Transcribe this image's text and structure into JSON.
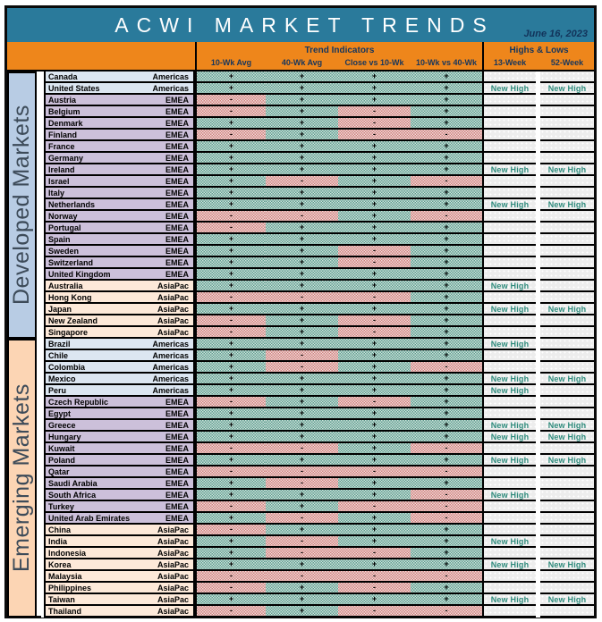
{
  "colors": {
    "title_band": "#2a7a9b",
    "header_band": "#ee861b",
    "header_text": "#16365d",
    "new_high_text": "#2e8b7c",
    "positive_cell": "#5f9e90",
    "negative_cell": "#cf827f",
    "americas_row": "#dce6f1",
    "emea_row": "#ccc0da",
    "asiapac_row": "#fde9d9",
    "developed_sidebar": "#b8cce4",
    "emerging_sidebar": "#fcd5b4"
  },
  "chart_data": {
    "type": "table",
    "title": "ACWI MARKET TRENDS",
    "date": "June 16, 2023",
    "column_groups": [
      "Trend Indicators",
      "Highs & Lows"
    ],
    "columns": [
      "10-Wk Avg",
      "40-Wk Avg",
      "Close vs 10-Wk",
      "10-Wk vs 40-Wk",
      "13-Week",
      "52-Week"
    ],
    "groups": [
      {
        "label": "Developed Markets"
      },
      {
        "label": "Emerging Markets"
      }
    ],
    "rows": [
      {
        "group": "Developed Markets",
        "country": "Canada",
        "region": "Americas",
        "values": [
          "+",
          "+",
          "+",
          "+"
        ],
        "week13": "",
        "week52": ""
      },
      {
        "group": "Developed Markets",
        "country": "United States",
        "region": "Americas",
        "values": [
          "+",
          "+",
          "+",
          "+"
        ],
        "week13": "New High",
        "week52": "New High"
      },
      {
        "group": "Developed Markets",
        "country": "Austria",
        "region": "EMEA",
        "values": [
          "-",
          "+",
          "+",
          "+"
        ],
        "week13": "",
        "week52": ""
      },
      {
        "group": "Developed Markets",
        "country": "Belgium",
        "region": "EMEA",
        "values": [
          "-",
          "+",
          "-",
          "+"
        ],
        "week13": "",
        "week52": ""
      },
      {
        "group": "Developed Markets",
        "country": "Denmark",
        "region": "EMEA",
        "values": [
          "+",
          "+",
          "-",
          "+"
        ],
        "week13": "",
        "week52": ""
      },
      {
        "group": "Developed Markets",
        "country": "Finland",
        "region": "EMEA",
        "values": [
          "-",
          "+",
          "-",
          "-"
        ],
        "week13": "",
        "week52": ""
      },
      {
        "group": "Developed Markets",
        "country": "France",
        "region": "EMEA",
        "values": [
          "+",
          "+",
          "+",
          "+"
        ],
        "week13": "",
        "week52": ""
      },
      {
        "group": "Developed Markets",
        "country": "Germany",
        "region": "EMEA",
        "values": [
          "+",
          "+",
          "+",
          "+"
        ],
        "week13": "",
        "week52": ""
      },
      {
        "group": "Developed Markets",
        "country": "Ireland",
        "region": "EMEA",
        "values": [
          "+",
          "+",
          "+",
          "+"
        ],
        "week13": "New High",
        "week52": "New High"
      },
      {
        "group": "Developed Markets",
        "country": "Israel",
        "region": "EMEA",
        "values": [
          "+",
          "-",
          "+",
          "-"
        ],
        "week13": "",
        "week52": ""
      },
      {
        "group": "Developed Markets",
        "country": "Italy",
        "region": "EMEA",
        "values": [
          "+",
          "+",
          "+",
          "+"
        ],
        "week13": "",
        "week52": ""
      },
      {
        "group": "Developed Markets",
        "country": "Netherlands",
        "region": "EMEA",
        "values": [
          "+",
          "+",
          "+",
          "+"
        ],
        "week13": "New High",
        "week52": "New High"
      },
      {
        "group": "Developed Markets",
        "country": "Norway",
        "region": "EMEA",
        "values": [
          "-",
          "-",
          "+",
          "-"
        ],
        "week13": "",
        "week52": ""
      },
      {
        "group": "Developed Markets",
        "country": "Portugal",
        "region": "EMEA",
        "values": [
          "-",
          "+",
          "+",
          "+"
        ],
        "week13": "",
        "week52": ""
      },
      {
        "group": "Developed Markets",
        "country": "Spain",
        "region": "EMEA",
        "values": [
          "+",
          "+",
          "+",
          "+"
        ],
        "week13": "",
        "week52": ""
      },
      {
        "group": "Developed Markets",
        "country": "Sweden",
        "region": "EMEA",
        "values": [
          "+",
          "+",
          "-",
          "+"
        ],
        "week13": "",
        "week52": ""
      },
      {
        "group": "Developed Markets",
        "country": "Switzerland",
        "region": "EMEA",
        "values": [
          "+",
          "+",
          "-",
          "+"
        ],
        "week13": "",
        "week52": ""
      },
      {
        "group": "Developed Markets",
        "country": "United Kingdom",
        "region": "EMEA",
        "values": [
          "+",
          "+",
          "+",
          "+"
        ],
        "week13": "",
        "week52": ""
      },
      {
        "group": "Developed Markets",
        "country": "Australia",
        "region": "AsiaPac",
        "values": [
          "+",
          "+",
          "+",
          "+"
        ],
        "week13": "New High",
        "week52": ""
      },
      {
        "group": "Developed Markets",
        "country": "Hong Kong",
        "region": "AsiaPac",
        "values": [
          "-",
          "-",
          "-",
          "+"
        ],
        "week13": "",
        "week52": ""
      },
      {
        "group": "Developed Markets",
        "country": "Japan",
        "region": "AsiaPac",
        "values": [
          "+",
          "+",
          "+",
          "+"
        ],
        "week13": "New High",
        "week52": "New High"
      },
      {
        "group": "Developed Markets",
        "country": "New Zealand",
        "region": "AsiaPac",
        "values": [
          "-",
          "+",
          "-",
          "+"
        ],
        "week13": "",
        "week52": ""
      },
      {
        "group": "Developed Markets",
        "country": "Singapore",
        "region": "AsiaPac",
        "values": [
          "-",
          "+",
          "-",
          "+"
        ],
        "week13": "",
        "week52": ""
      },
      {
        "group": "Emerging Markets",
        "country": "Brazil",
        "region": "Americas",
        "values": [
          "+",
          "+",
          "+",
          "+"
        ],
        "week13": "New High",
        "week52": ""
      },
      {
        "group": "Emerging Markets",
        "country": "Chile",
        "region": "Americas",
        "values": [
          "+",
          "-",
          "+",
          "+"
        ],
        "week13": "",
        "week52": ""
      },
      {
        "group": "Emerging Markets",
        "country": "Colombia",
        "region": "Americas",
        "values": [
          "+",
          "-",
          "+",
          "-"
        ],
        "week13": "",
        "week52": ""
      },
      {
        "group": "Emerging Markets",
        "country": "Mexico",
        "region": "Americas",
        "values": [
          "+",
          "+",
          "+",
          "+"
        ],
        "week13": "New High",
        "week52": "New High"
      },
      {
        "group": "Emerging Markets",
        "country": "Peru",
        "region": "Americas",
        "values": [
          "+",
          "+",
          "+",
          "+"
        ],
        "week13": "New High",
        "week52": ""
      },
      {
        "group": "Emerging Markets",
        "country": "Czech Republic",
        "region": "EMEA",
        "values": [
          "-",
          "+",
          "-",
          "+"
        ],
        "week13": "",
        "week52": ""
      },
      {
        "group": "Emerging Markets",
        "country": "Egypt",
        "region": "EMEA",
        "values": [
          "+",
          "+",
          "+",
          "+"
        ],
        "week13": "",
        "week52": ""
      },
      {
        "group": "Emerging Markets",
        "country": "Greece",
        "region": "EMEA",
        "values": [
          "+",
          "+",
          "+",
          "+"
        ],
        "week13": "New High",
        "week52": "New High"
      },
      {
        "group": "Emerging Markets",
        "country": "Hungary",
        "region": "EMEA",
        "values": [
          "+",
          "+",
          "+",
          "+"
        ],
        "week13": "New High",
        "week52": "New High"
      },
      {
        "group": "Emerging Markets",
        "country": "Kuwait",
        "region": "EMEA",
        "values": [
          "-",
          "-",
          "+",
          "-"
        ],
        "week13": "",
        "week52": ""
      },
      {
        "group": "Emerging Markets",
        "country": "Poland",
        "region": "EMEA",
        "values": [
          "+",
          "+",
          "+",
          "+"
        ],
        "week13": "New High",
        "week52": "New High"
      },
      {
        "group": "Emerging Markets",
        "country": "Qatar",
        "region": "EMEA",
        "values": [
          "-",
          "-",
          "-",
          "-"
        ],
        "week13": "",
        "week52": ""
      },
      {
        "group": "Emerging Markets",
        "country": "Saudi Arabia",
        "region": "EMEA",
        "values": [
          "+",
          "-",
          "+",
          "+"
        ],
        "week13": "",
        "week52": ""
      },
      {
        "group": "Emerging Markets",
        "country": "South Africa",
        "region": "EMEA",
        "values": [
          "+",
          "+",
          "+",
          "-"
        ],
        "week13": "New High",
        "week52": ""
      },
      {
        "group": "Emerging Markets",
        "country": "Turkey",
        "region": "EMEA",
        "values": [
          "-",
          "+",
          "-",
          "-"
        ],
        "week13": "",
        "week52": ""
      },
      {
        "group": "Emerging Markets",
        "country": "United Arab Emirates",
        "region": "EMEA",
        "values": [
          "+",
          "-",
          "+",
          "-"
        ],
        "week13": "",
        "week52": ""
      },
      {
        "group": "Emerging Markets",
        "country": "China",
        "region": "AsiaPac",
        "values": [
          "-",
          "+",
          "+",
          "+"
        ],
        "week13": "",
        "week52": ""
      },
      {
        "group": "Emerging Markets",
        "country": "India",
        "region": "AsiaPac",
        "values": [
          "+",
          "-",
          "+",
          "+"
        ],
        "week13": "New High",
        "week52": ""
      },
      {
        "group": "Emerging Markets",
        "country": "Indonesia",
        "region": "AsiaPac",
        "values": [
          "+",
          "-",
          "-",
          "+"
        ],
        "week13": "",
        "week52": ""
      },
      {
        "group": "Emerging Markets",
        "country": "Korea",
        "region": "AsiaPac",
        "values": [
          "+",
          "+",
          "+",
          "+"
        ],
        "week13": "New High",
        "week52": "New High"
      },
      {
        "group": "Emerging Markets",
        "country": "Malaysia",
        "region": "AsiaPac",
        "values": [
          "-",
          "-",
          "-",
          "-"
        ],
        "week13": "",
        "week52": ""
      },
      {
        "group": "Emerging Markets",
        "country": "Philippines",
        "region": "AsiaPac",
        "values": [
          "-",
          "+",
          "-",
          "+"
        ],
        "week13": "",
        "week52": ""
      },
      {
        "group": "Emerging Markets",
        "country": "Taiwan",
        "region": "AsiaPac",
        "values": [
          "+",
          "+",
          "+",
          "+"
        ],
        "week13": "New High",
        "week52": "New High"
      },
      {
        "group": "Emerging Markets",
        "country": "Thailand",
        "region": "AsiaPac",
        "values": [
          "-",
          "+",
          "-",
          "-"
        ],
        "week13": "",
        "week52": ""
      }
    ]
  }
}
